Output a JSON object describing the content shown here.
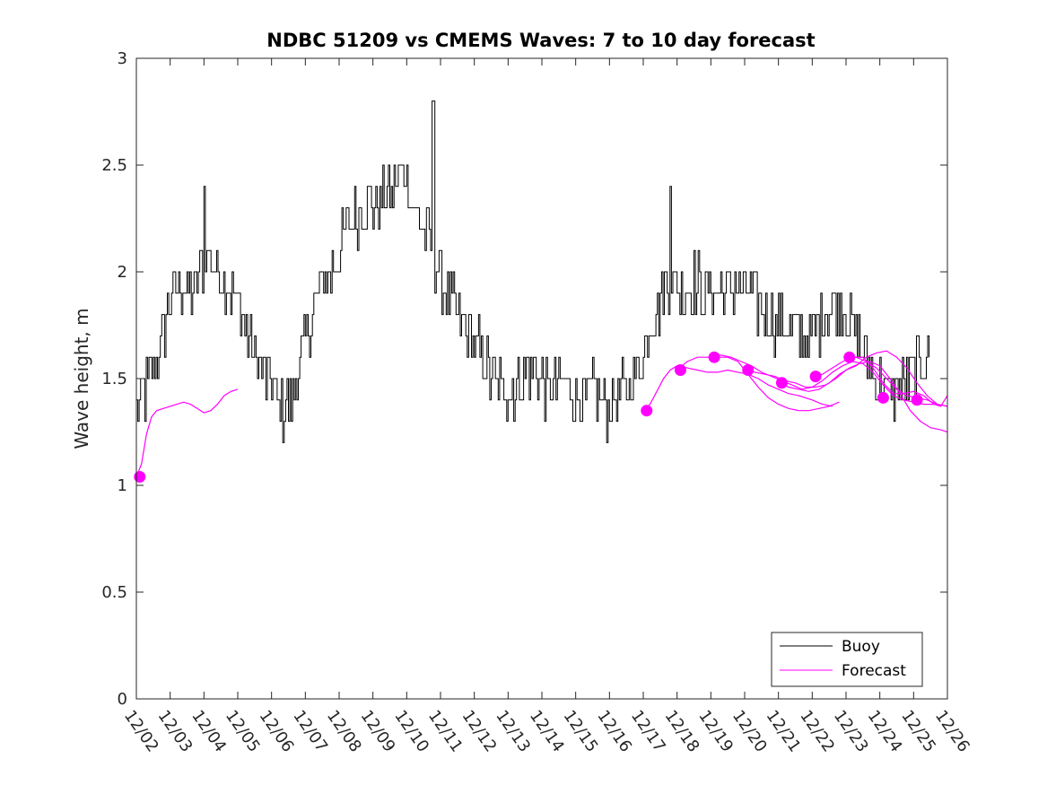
{
  "chart_data": {
    "type": "line",
    "title": "NDBC 51209 vs CMEMS Waves: 7 to 10 day forecast",
    "xlabel": "",
    "ylabel": "Wave height, m",
    "xlim": [
      0,
      24
    ],
    "ylim": [
      0,
      3
    ],
    "yticks": [
      0,
      0.5,
      1,
      1.5,
      2,
      2.5,
      3
    ],
    "ytick_labels": [
      "0",
      "0.5",
      "1",
      "1.5",
      "2",
      "2.5",
      "3"
    ],
    "xtick_labels": [
      "12/02",
      "12/03",
      "12/04",
      "12/05",
      "12/06",
      "12/07",
      "12/08",
      "12/09",
      "12/10",
      "12/11",
      "12/12",
      "12/13",
      "12/14",
      "12/15",
      "12/16",
      "12/17",
      "12/18",
      "12/19",
      "12/20",
      "12/21",
      "12/22",
      "12/23",
      "12/24",
      "12/25",
      "12/26"
    ],
    "legend": {
      "position": "bottom-right",
      "entries": [
        "Buoy",
        "Forecast"
      ]
    },
    "colors": {
      "buoy": "#000000",
      "forecast": "#ff00ff"
    },
    "buoy_trend": {
      "x": [
        0.0,
        0.3,
        0.5,
        0.8,
        1.0,
        1.3,
        1.6,
        1.9,
        2.1,
        2.4,
        2.8,
        3.1,
        3.4,
        3.7,
        4.0,
        4.3,
        4.6,
        4.9,
        5.2,
        5.5,
        5.8,
        6.1,
        6.4,
        6.7,
        7.0,
        7.3,
        7.6,
        7.9,
        8.2,
        8.5,
        8.8,
        9.0,
        9.3,
        9.6,
        9.9,
        10.2,
        10.5,
        10.8,
        11.1,
        11.4,
        11.7,
        12.0,
        12.3,
        12.6,
        12.9,
        13.2,
        13.5,
        13.8,
        14.1,
        14.4,
        14.7,
        15.0,
        15.3,
        15.6,
        15.9,
        16.2,
        16.5,
        16.8,
        17.1,
        17.4,
        17.7,
        18.0,
        18.3,
        18.6,
        18.9,
        19.2,
        19.5,
        19.8,
        20.1,
        20.4,
        20.7,
        21.0,
        21.3,
        21.6,
        21.9,
        22.2,
        22.5,
        22.8,
        23.1,
        23.3,
        23.5
      ],
      "y": [
        1.35,
        1.45,
        1.55,
        1.7,
        1.9,
        1.95,
        1.9,
        2.0,
        2.1,
        2.0,
        1.9,
        1.8,
        1.65,
        1.55,
        1.45,
        1.35,
        1.42,
        1.6,
        1.8,
        1.95,
        2.0,
        2.15,
        2.25,
        2.3,
        2.3,
        2.32,
        2.4,
        2.5,
        2.3,
        2.2,
        2.1,
        1.95,
        1.85,
        1.75,
        1.7,
        1.6,
        1.5,
        1.45,
        1.45,
        1.5,
        1.55,
        1.48,
        1.45,
        1.5,
        1.45,
        1.4,
        1.42,
        1.38,
        1.38,
        1.45,
        1.5,
        1.62,
        1.8,
        1.9,
        1.95,
        1.9,
        1.95,
        1.92,
        1.9,
        1.92,
        1.95,
        1.9,
        1.85,
        1.8,
        1.78,
        1.75,
        1.7,
        1.7,
        1.75,
        1.8,
        1.85,
        1.8,
        1.7,
        1.6,
        1.5,
        1.45,
        1.45,
        1.5,
        1.55,
        1.6,
        1.62
      ]
    },
    "buoy_spikes": [
      {
        "x": 2.0,
        "y": 2.4
      },
      {
        "x": 8.78,
        "y": 2.8
      },
      {
        "x": 15.8,
        "y": 2.4
      }
    ],
    "forecast_series": [
      {
        "x": [
          0.0,
          0.15,
          0.3,
          0.45,
          0.6,
          0.8,
          1.0,
          1.2,
          1.4,
          1.6,
          1.8,
          2.0,
          2.2,
          2.4,
          2.6,
          2.8,
          3.0
        ],
        "y": [
          1.04,
          1.1,
          1.24,
          1.32,
          1.35,
          1.36,
          1.37,
          1.38,
          1.39,
          1.38,
          1.36,
          1.34,
          1.35,
          1.38,
          1.42,
          1.44,
          1.45
        ]
      },
      {
        "x": [
          15.0,
          15.2,
          15.4,
          15.6,
          15.8,
          16.0,
          16.3,
          16.6,
          16.9,
          17.2,
          17.5,
          17.8,
          18.1,
          18.4,
          18.7,
          19.0,
          19.3,
          19.6,
          20.0,
          20.3,
          20.6
        ],
        "y": [
          1.35,
          1.38,
          1.44,
          1.5,
          1.54,
          1.56,
          1.55,
          1.54,
          1.53,
          1.53,
          1.54,
          1.53,
          1.52,
          1.5,
          1.47,
          1.45,
          1.43,
          1.42,
          1.4,
          1.38,
          1.37
        ]
      },
      {
        "x": [
          16.0,
          16.3,
          16.6,
          16.9,
          17.2,
          17.5,
          17.8,
          18.1,
          18.4,
          18.7,
          19.0,
          19.3,
          19.6,
          19.9,
          20.2,
          20.5,
          20.8
        ],
        "y": [
          1.54,
          1.58,
          1.6,
          1.6,
          1.6,
          1.6,
          1.58,
          1.52,
          1.46,
          1.41,
          1.38,
          1.36,
          1.35,
          1.35,
          1.36,
          1.37,
          1.39
        ]
      },
      {
        "x": [
          17.0,
          17.3,
          17.6,
          17.9,
          18.2,
          18.5,
          18.8,
          19.1,
          19.4,
          19.7,
          20.0,
          20.3,
          20.6,
          20.9,
          21.2,
          21.5,
          21.8,
          22.1,
          22.4,
          22.7,
          23.0,
          23.3,
          23.6
        ],
        "y": [
          1.6,
          1.61,
          1.6,
          1.58,
          1.56,
          1.53,
          1.51,
          1.49,
          1.47,
          1.45,
          1.46,
          1.49,
          1.53,
          1.56,
          1.58,
          1.57,
          1.53,
          1.47,
          1.42,
          1.4,
          1.39,
          1.38,
          1.38
        ]
      },
      {
        "x": [
          18.0,
          18.3,
          18.6,
          18.9,
          19.2,
          19.5,
          19.8,
          20.1,
          20.4,
          20.7,
          21.0,
          21.3,
          21.6,
          21.9,
          22.2,
          22.5,
          22.8,
          23.1,
          23.4,
          23.7,
          24.0
        ],
        "y": [
          1.54,
          1.53,
          1.52,
          1.51,
          1.49,
          1.48,
          1.46,
          1.46,
          1.47,
          1.5,
          1.54,
          1.56,
          1.6,
          1.62,
          1.63,
          1.6,
          1.55,
          1.48,
          1.42,
          1.38,
          1.37
        ]
      },
      {
        "x": [
          19.0,
          19.3,
          19.6,
          19.9,
          20.2,
          20.5,
          20.8,
          21.1,
          21.4,
          21.7,
          22.0,
          22.3,
          22.6,
          22.9,
          23.2,
          23.5,
          23.8,
          24.0
        ],
        "y": [
          1.48,
          1.46,
          1.45,
          1.44,
          1.45,
          1.48,
          1.52,
          1.55,
          1.57,
          1.58,
          1.56,
          1.5,
          1.43,
          1.35,
          1.3,
          1.27,
          1.26,
          1.25
        ]
      },
      {
        "x": [
          20.0,
          20.3,
          20.6,
          20.9,
          21.2,
          21.5,
          21.8,
          22.1,
          22.4,
          22.7,
          23.0,
          23.3,
          23.6,
          23.8,
          24.0
        ],
        "y": [
          1.51,
          1.52,
          1.55,
          1.58,
          1.6,
          1.6,
          1.55,
          1.48,
          1.43,
          1.43,
          1.44,
          1.42,
          1.38,
          1.37,
          1.42
        ]
      },
      {
        "x": [
          21.0,
          21.3,
          21.6,
          21.9,
          22.2,
          22.5,
          22.8,
          23.1,
          23.4,
          23.7,
          24.0
        ],
        "y": [
          1.6,
          1.6,
          1.58,
          1.55,
          1.5,
          1.45,
          1.42,
          1.41,
          1.4,
          1.38,
          1.37
        ]
      }
    ],
    "forecast_markers": {
      "x": [
        0.1,
        15.1,
        16.1,
        17.1,
        18.1,
        19.1,
        20.1,
        21.1,
        22.1,
        23.1
      ],
      "y": [
        1.04,
        1.35,
        1.54,
        1.6,
        1.54,
        1.48,
        1.51,
        1.6,
        1.41,
        1.4
      ]
    }
  }
}
